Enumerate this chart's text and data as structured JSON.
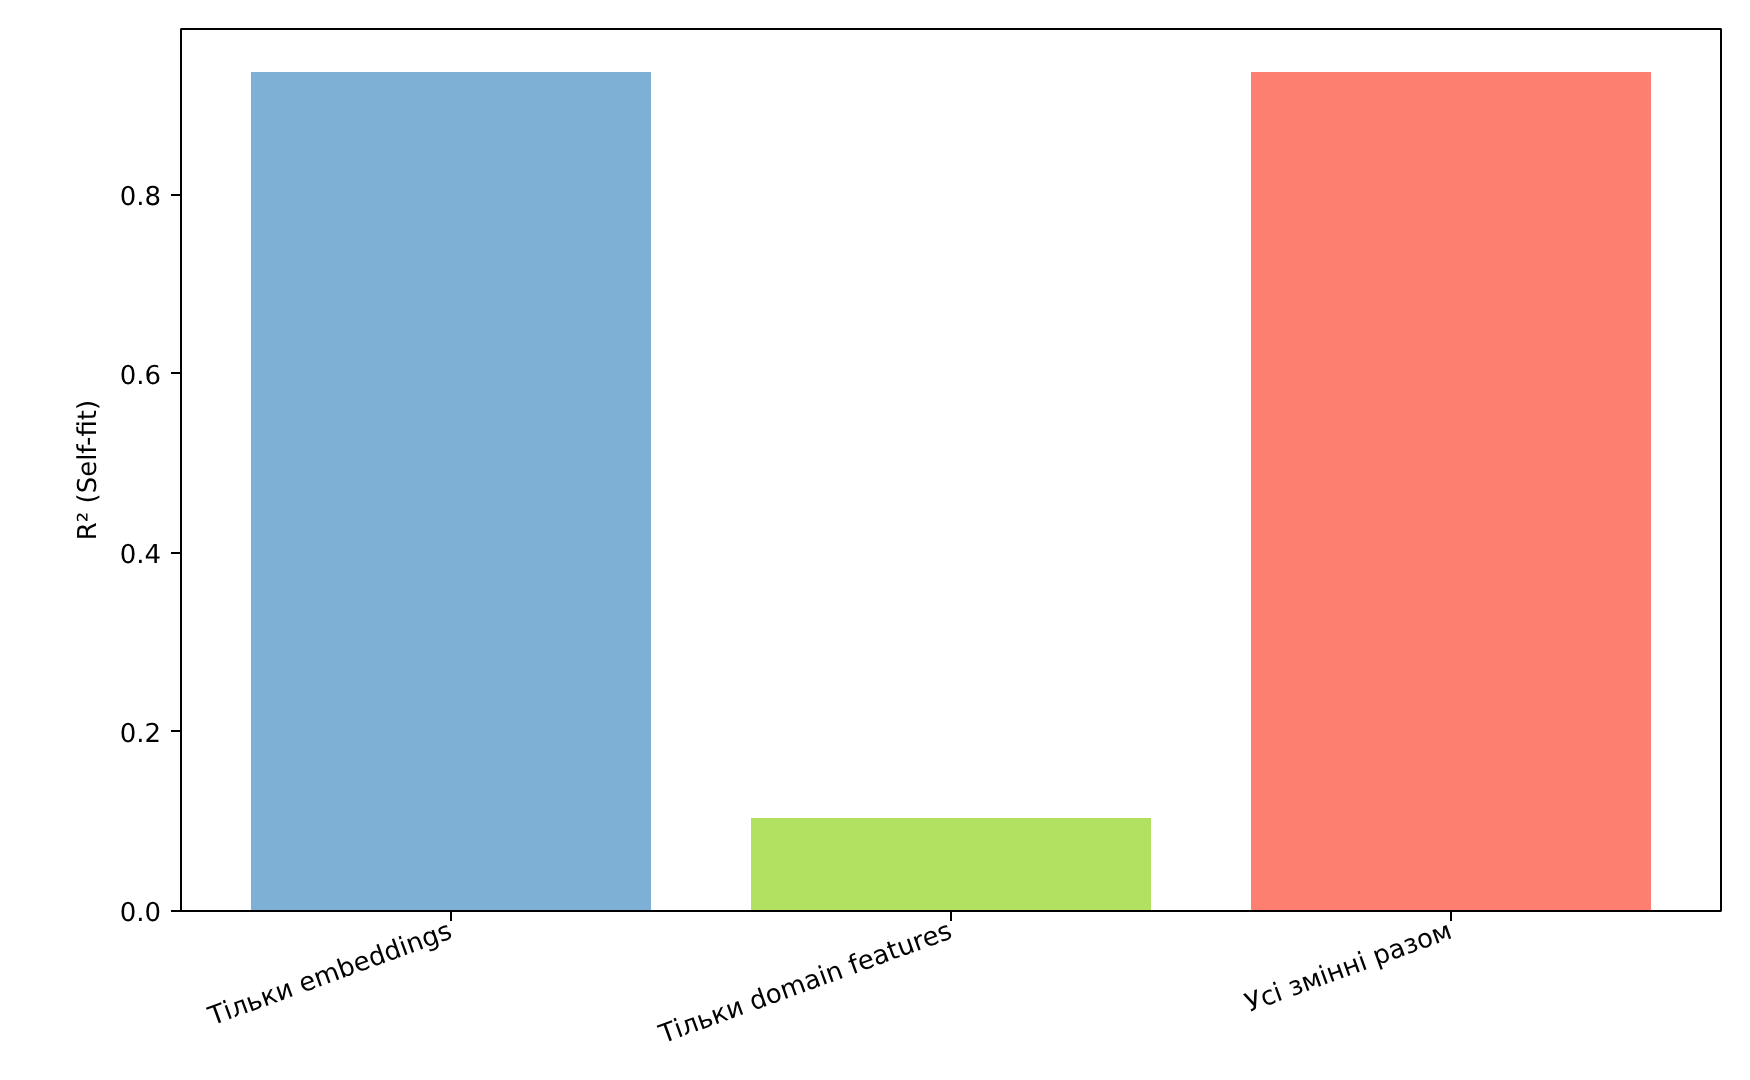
{
  "chart_data": {
    "type": "bar",
    "ylabel": "R² (Self-fit)",
    "categories": [
      "Тільки embeddings",
      "Тільки domain features",
      "Усі змінні разом"
    ],
    "values": [
      0.937,
      0.104,
      0.937
    ],
    "colors": [
      "#7eb0d5",
      "#b2e061",
      "#fd7f6f"
    ],
    "ylim": [
      0,
      0.985
    ],
    "yticks": [
      {
        "value": 0,
        "label": "0.0"
      },
      {
        "value": 0.2,
        "label": "0.2"
      },
      {
        "value": 0.4,
        "label": "0.4"
      },
      {
        "value": 0.6,
        "label": "0.6"
      },
      {
        "value": 0.8,
        "label": "0.8"
      }
    ],
    "grid": false
  }
}
